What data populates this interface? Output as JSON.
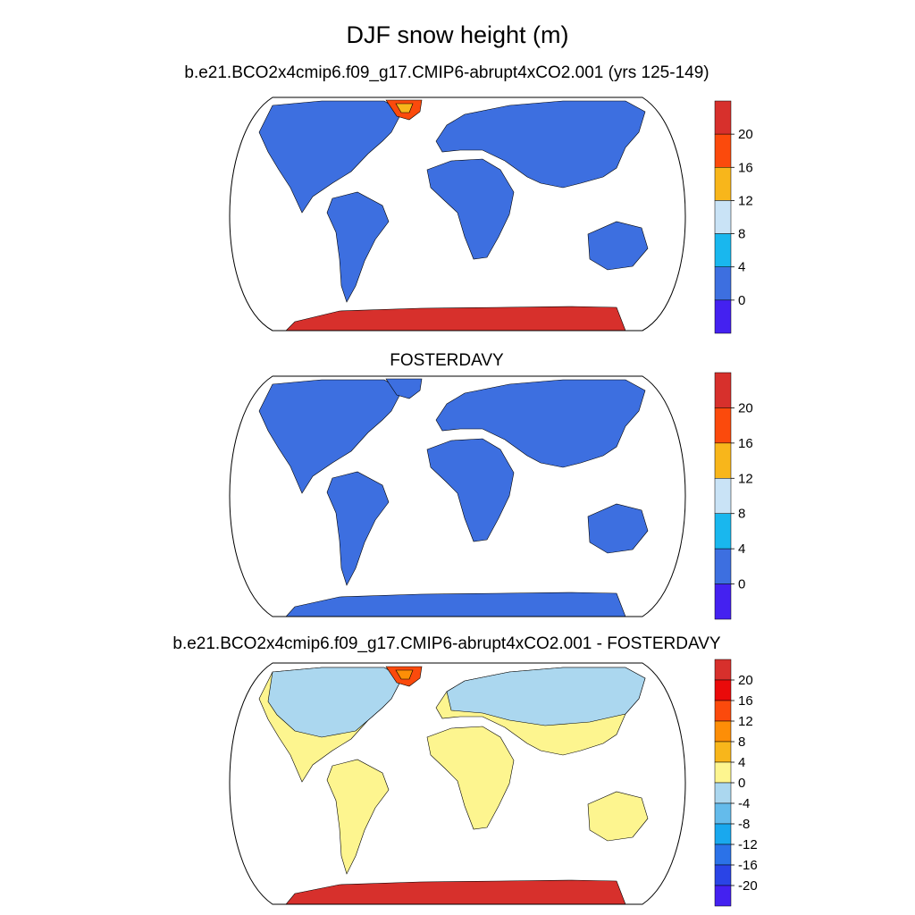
{
  "figure": {
    "title": "DJF snow height (m)"
  },
  "panels": [
    {
      "title": "b.e21.BCO2x4cmip6.f09_g17.CMIP6-abrupt4xCO2.001 (yrs 125-149)",
      "colorbar": {
        "labels": [
          "20",
          "16",
          "12",
          "8",
          "4",
          "0"
        ],
        "colors": [
          "#d7302c",
          "#fb4a0c",
          "#f8b61b",
          "#c9e3f6",
          "#19b7ee",
          "#3d6fe0",
          "#4421f0"
        ]
      },
      "fill": {
        "land": "#3d6fe0",
        "antarctica": "#d7302c",
        "greenland": "#fb4a0c",
        "greenland_core": "#f8b61b"
      }
    },
    {
      "title": "FOSTERDAVY",
      "colorbar": {
        "labels": [
          "20",
          "16",
          "12",
          "8",
          "4",
          "0"
        ],
        "colors": [
          "#d7302c",
          "#fb4a0c",
          "#f8b61b",
          "#c9e3f6",
          "#19b7ee",
          "#3d6fe0",
          "#4421f0"
        ]
      },
      "fill": {
        "land": "#3d6fe0",
        "antarctica": "#3d6fe0",
        "greenland": "#3d6fe0",
        "greenland_core": "#3d6fe0"
      }
    },
    {
      "title": "b.e21.BCO2x4cmip6.f09_g17.CMIP6-abrupt4xCO2.001 - FOSTERDAVY",
      "colorbar": {
        "labels": [
          "20",
          "16",
          "12",
          "8",
          "4",
          "0",
          "-4",
          "-8",
          "-12",
          "-16",
          "-20"
        ],
        "colors": [
          "#d7302c",
          "#ea0a0a",
          "#fb4a0c",
          "#fd8e07",
          "#f8b61b",
          "#fdf58f",
          "#abd7ef",
          "#64bbeb",
          "#19a8ee",
          "#2b72e8",
          "#2a44e6",
          "#4421f0"
        ]
      },
      "fill": {
        "land": "#fdf58f",
        "north": "#abd7ef",
        "antarctica": "#d7302c",
        "greenland": "#fb4a0c",
        "greenland_core": "#fd8e07"
      }
    }
  ]
}
